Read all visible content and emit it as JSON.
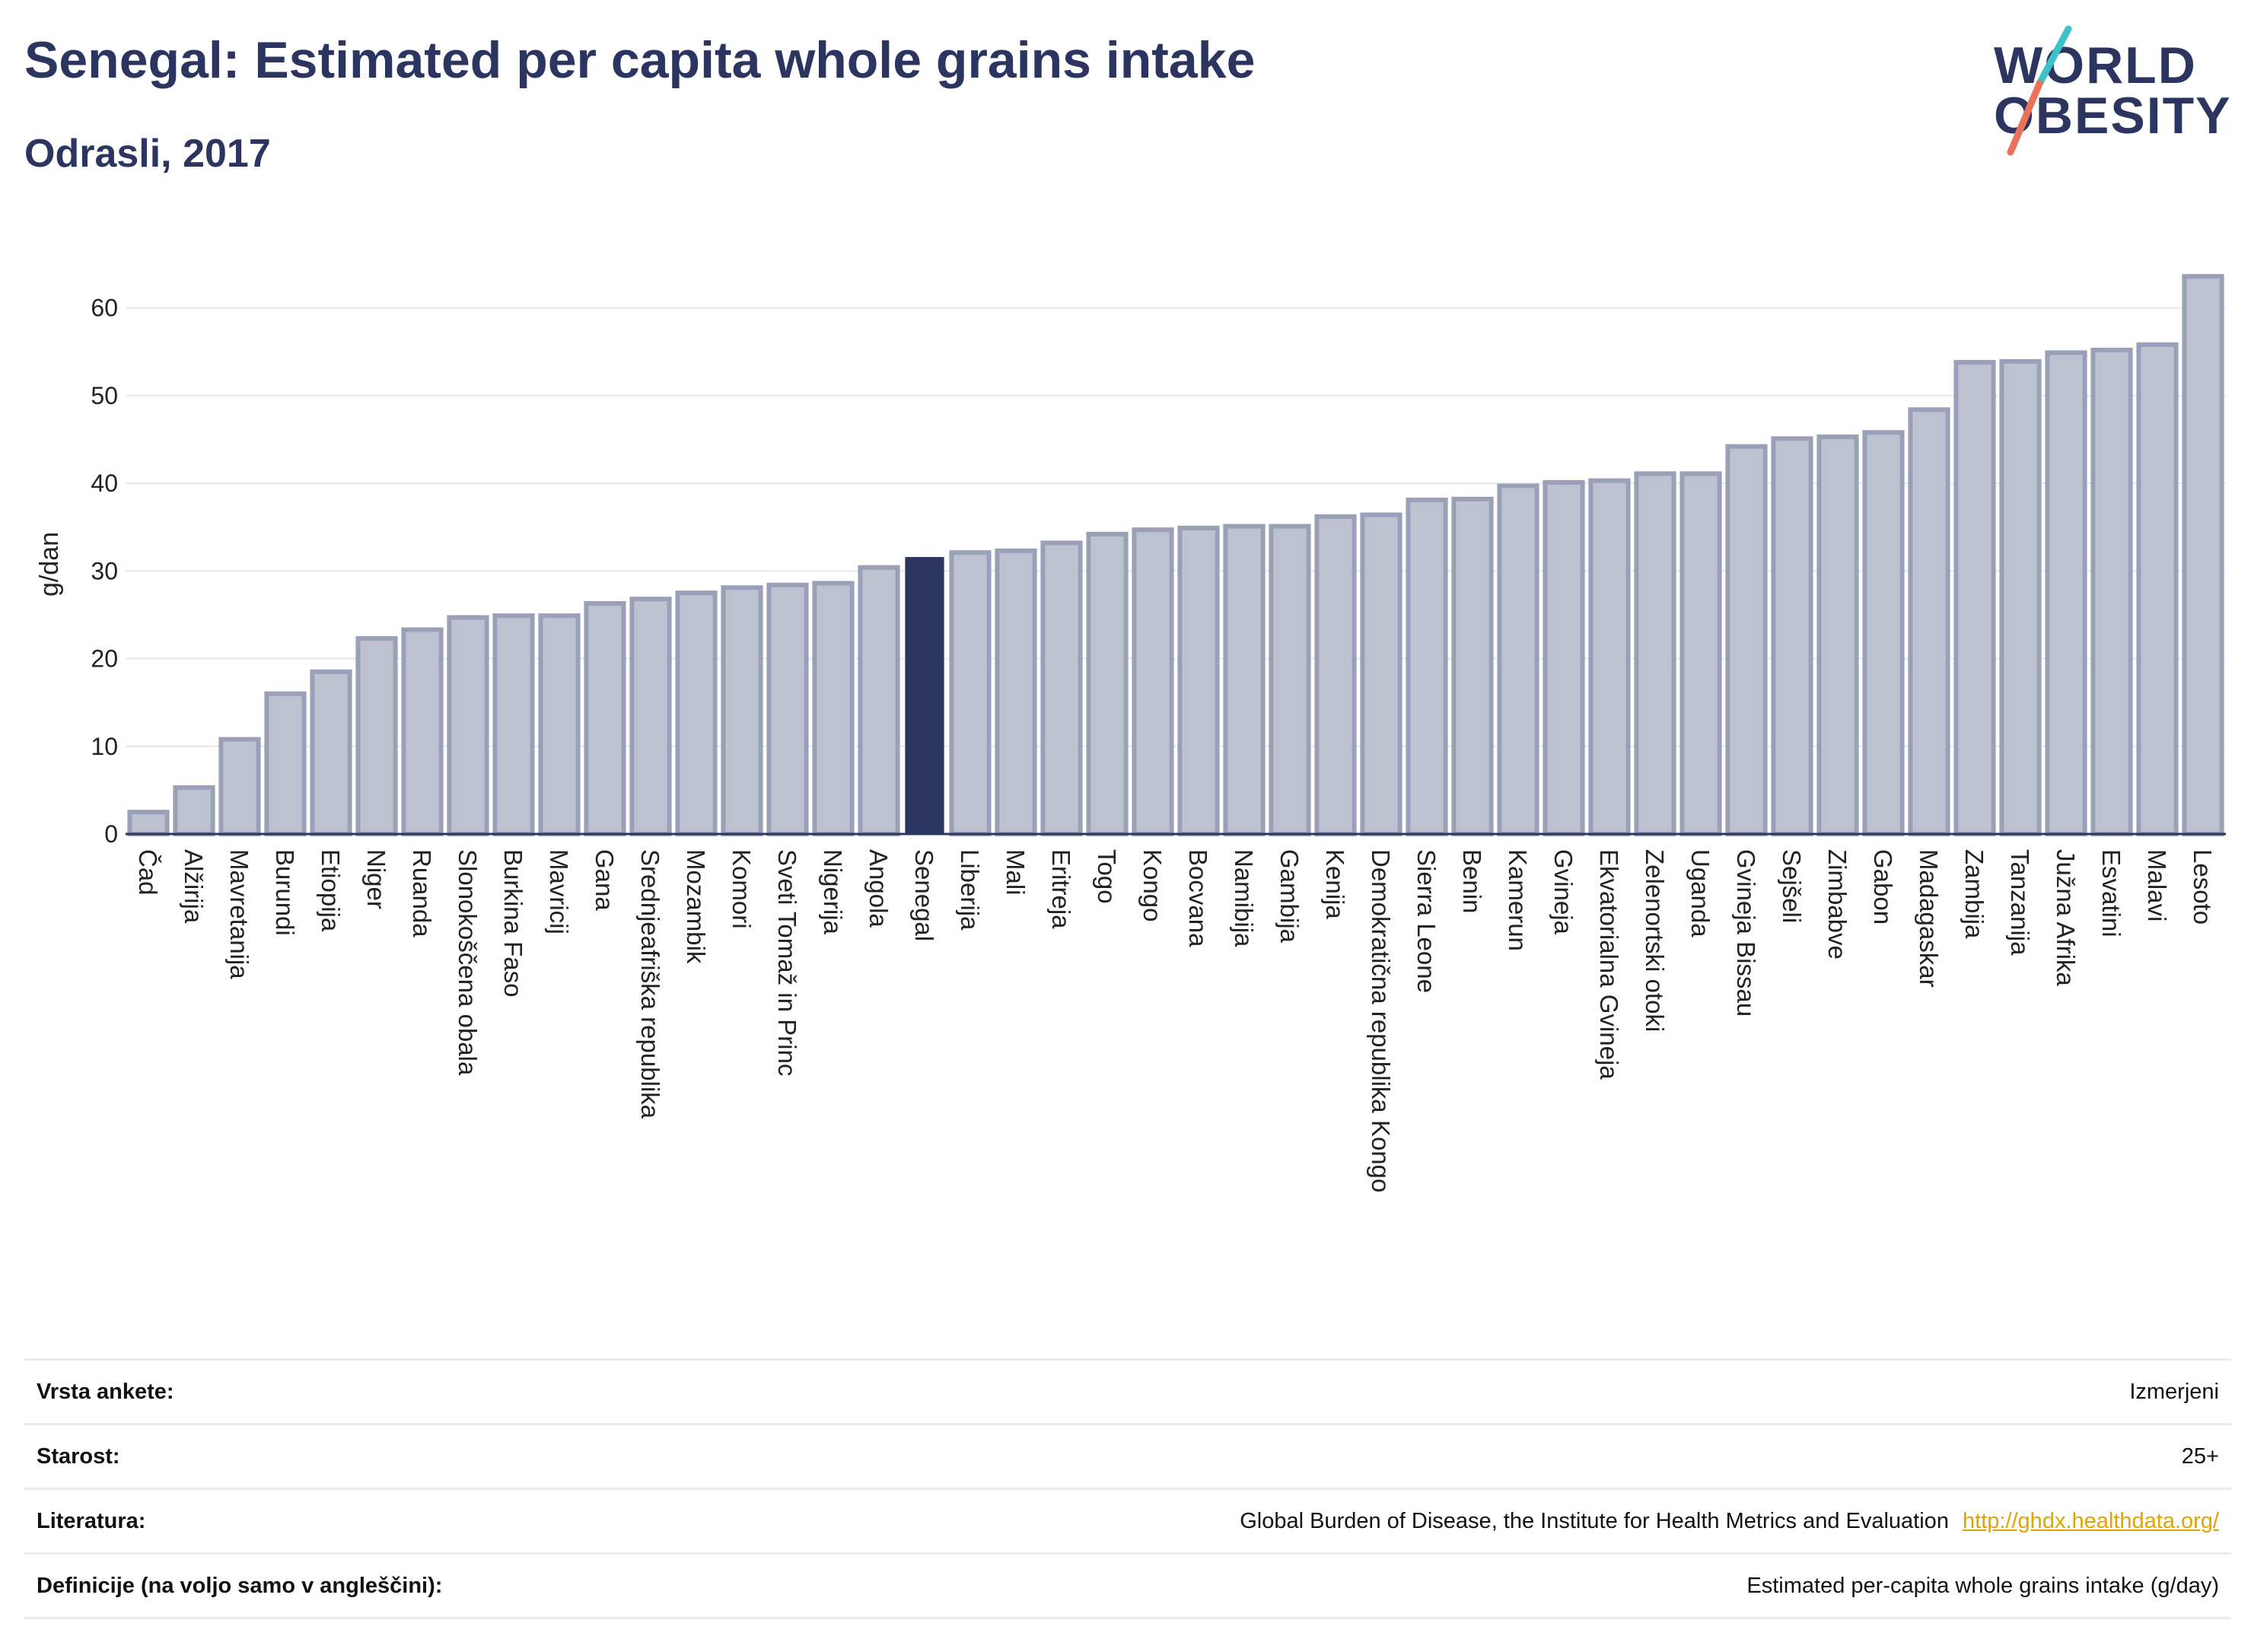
{
  "title": "Senegal: Estimated per capita whole grains intake",
  "subtitle": "Odrasli, 2017",
  "logo": {
    "line1": "WORLD",
    "line2": "OBESITY",
    "colors": [
      "#2b3560",
      "#3ec1c9",
      "#e8735a"
    ]
  },
  "colors": {
    "bar": "#bdc1d0",
    "bar_stroke": "#9aa0b8",
    "highlight": "#2b3560",
    "grid": "#e6e8ee",
    "axis": "#2b3560"
  },
  "chart_data": {
    "type": "bar",
    "ylabel": "g/dan",
    "ylim": [
      0,
      65
    ],
    "yticks": [
      0,
      10,
      20,
      30,
      40,
      50,
      60
    ],
    "grid": true,
    "highlight": "Senegal",
    "categories": [
      "Čad",
      "Alžirija",
      "Mavretanija",
      "Burundi",
      "Etiopija",
      "Niger",
      "Ruanda",
      "Slonokoščena obala",
      "Burkina Faso",
      "Mavricij",
      "Gana",
      "Srednjeafriška republika",
      "Mozambik",
      "Komori",
      "Sveti Tomaž in Princ",
      "Nigerija",
      "Angola",
      "Senegal",
      "Liberija",
      "Mali",
      "Eritreja",
      "Togo",
      "Kongo",
      "Bocvana",
      "Namibija",
      "Gambija",
      "Kenija",
      "Demokratična republika Kongo",
      "Sierra Leone",
      "Benin",
      "Kamerun",
      "Gvineja",
      "Ekvatorialna Gvineja",
      "Zelenortski otoki",
      "Uganda",
      "Gvineja Bissau",
      "Sejšeli",
      "Zimbabve",
      "Gabon",
      "Madagaskar",
      "Zambija",
      "Tanzanija",
      "Južna Afrika",
      "Esvatini",
      "Malavi",
      "Lesoto"
    ],
    "values": [
      2.5,
      5.3,
      10.8,
      16.0,
      18.5,
      22.3,
      23.3,
      24.7,
      24.9,
      24.9,
      26.3,
      26.8,
      27.5,
      28.1,
      28.4,
      28.6,
      30.4,
      31.5,
      32.1,
      32.3,
      33.2,
      34.2,
      34.7,
      34.9,
      35.1,
      35.1,
      36.2,
      36.4,
      38.1,
      38.2,
      39.7,
      40.1,
      40.3,
      41.1,
      41.1,
      44.2,
      45.1,
      45.3,
      45.8,
      48.4,
      53.8,
      53.9,
      54.9,
      55.2,
      55.8,
      63.6
    ]
  },
  "meta": [
    {
      "label": "Vrsta ankete:",
      "value": "Izmerjeni"
    },
    {
      "label": "Starost:",
      "value": "25+"
    },
    {
      "label": "Literatura:",
      "value": "Global Burden of Disease, the Institute for Health Metrics and Evaluation",
      "link": "http://ghdx.healthdata.org/"
    },
    {
      "label": "Definicije (na voljo samo v angleščini):",
      "value": "Estimated per-capita whole grains intake (g/day)"
    }
  ]
}
